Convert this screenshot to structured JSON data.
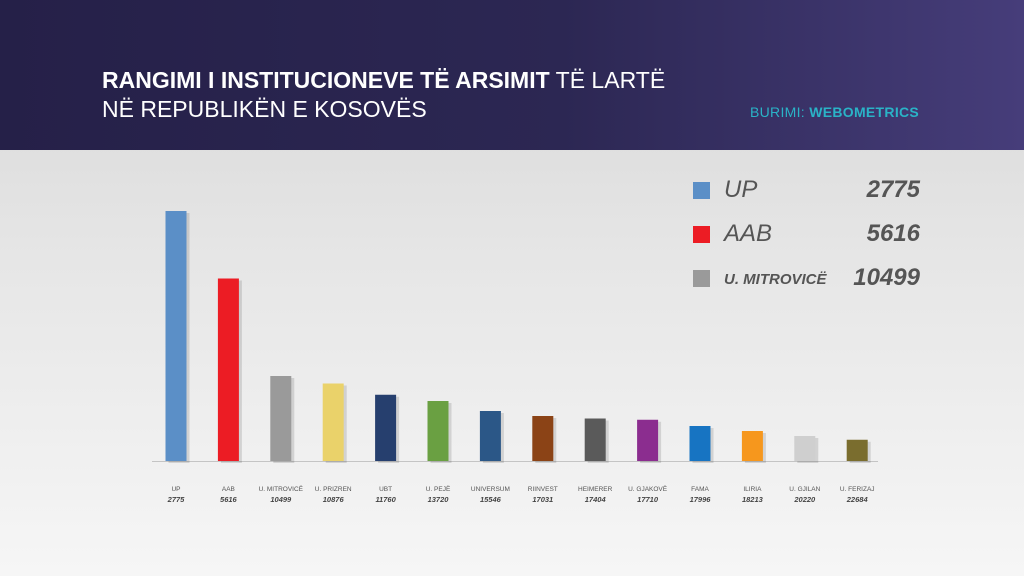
{
  "header": {
    "title_line1_bold": "RANGIMI I INSTITUCIONEVE TË ARSIMIT",
    "title_line1_light": "TË LARTË",
    "title_line2": "NË REPUBLIKËN E KOSOVËS",
    "source_label": "BURIMI:",
    "source_value": "WEBOMETRICS"
  },
  "legend": {
    "items": [
      {
        "name": "UP",
        "value": "2775",
        "color": "#5b8fc7"
      },
      {
        "name": "AAB",
        "value": "5616",
        "color": "#ec1c24"
      },
      {
        "name": "U. MITROVICË",
        "value": "10499",
        "color": "#9a9a9a"
      }
    ]
  },
  "chart_data": {
    "type": "bar",
    "categories": [
      "UP",
      "AAB",
      "U. MITROVICË",
      "U. PRIZREN",
      "UBT",
      "U. PEJË",
      "UNIVERSUM",
      "RIINVEST",
      "HEIMERER",
      "U. GJAKOVË",
      "FAMA",
      "ILIRIA",
      "U. GJILAN",
      "U. FERIZAJ"
    ],
    "values": [
      2775,
      5616,
      10499,
      10876,
      11760,
      13720,
      15546,
      17031,
      17404,
      17710,
      17996,
      18213,
      20220,
      22684
    ],
    "bar_heights_relative": [
      1.0,
      0.73,
      0.34,
      0.31,
      0.265,
      0.24,
      0.2,
      0.18,
      0.17,
      0.165,
      0.14,
      0.12,
      0.1,
      0.085
    ],
    "colors": [
      "#5b8fc7",
      "#ec1c24",
      "#9a9a9a",
      "#ead26a",
      "#263f6e",
      "#6aa042",
      "#2b5787",
      "#8b4316",
      "#5a5a5a",
      "#8b2d8f",
      "#1774c2",
      "#f6971d",
      "#cfcfcf",
      "#7a6d2e"
    ],
    "note": "Bar length reflects rank; lower Webometrics rank number = taller bar"
  }
}
